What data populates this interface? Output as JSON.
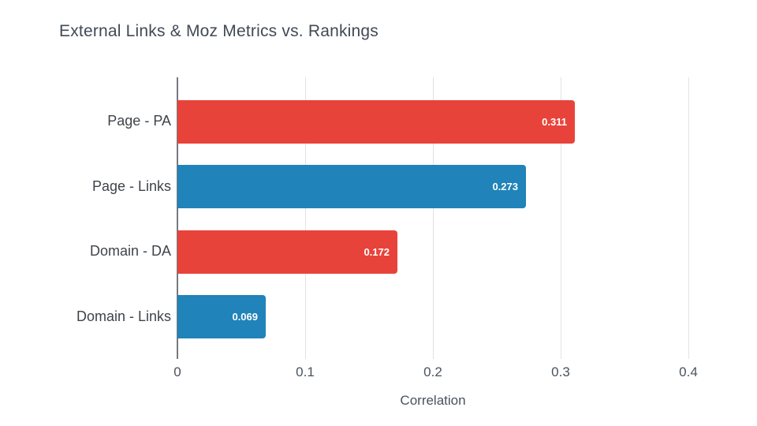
{
  "title": "External Links & Moz Metrics vs. Rankings",
  "colors": {
    "red": "#e8433a",
    "blue": "#2083b9",
    "gridline": "#e2e2e2",
    "axis_line": "#75797d",
    "title_text": "#404a54",
    "category_text": "#3f444a",
    "tick_text": "#49525c",
    "value_text": "#ffffff",
    "background": "#ffffff"
  },
  "chart_data": {
    "type": "bar",
    "orientation": "horizontal",
    "title": "External Links & Moz Metrics vs. Rankings",
    "categories": [
      "Page - PA",
      "Page - Links",
      "Domain - DA",
      "Domain - Links"
    ],
    "values": [
      0.311,
      0.273,
      0.172,
      0.069
    ],
    "value_labels": [
      "0.311",
      "0.273",
      "0.172",
      "0.069"
    ],
    "bar_colors": [
      "#e8433a",
      "#2083b9",
      "#e8433a",
      "#2083b9"
    ],
    "xlabel": "Correlation",
    "ylabel": "",
    "xlim": [
      0,
      0.4
    ],
    "xticks": [
      0,
      0.1,
      0.2,
      0.3,
      0.4
    ],
    "xtick_labels": [
      "0",
      "0.1",
      "0.2",
      "0.3",
      "0.4"
    ],
    "grid": "vertical-only",
    "legend": "none",
    "value_label_position": "inside-end"
  }
}
